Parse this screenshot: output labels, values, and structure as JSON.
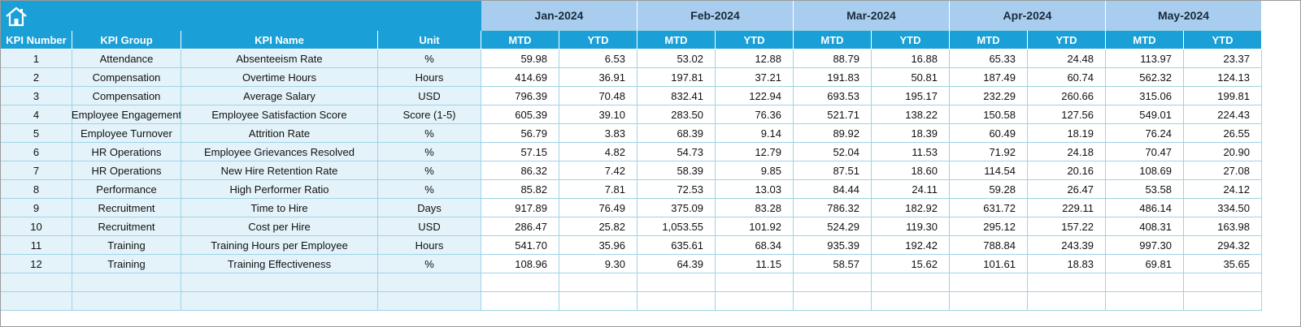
{
  "table": {
    "months": [
      "Jan-2024",
      "Feb-2024",
      "Mar-2024",
      "Apr-2024",
      "May-2024"
    ],
    "columns": [
      "KPI Number",
      "KPI Group",
      "KPI Name",
      "Unit"
    ],
    "period_columns": [
      "MTD",
      "YTD"
    ],
    "rows": [
      [
        "1",
        "Attendance",
        "Absenteeism Rate",
        "%",
        "59.98",
        "6.53",
        "53.02",
        "12.88",
        "88.79",
        "16.88",
        "65.33",
        "24.48",
        "113.97",
        "23.37"
      ],
      [
        "2",
        "Compensation",
        "Overtime Hours",
        "Hours",
        "414.69",
        "36.91",
        "197.81",
        "37.21",
        "191.83",
        "50.81",
        "187.49",
        "60.74",
        "562.32",
        "124.13"
      ],
      [
        "3",
        "Compensation",
        "Average Salary",
        "USD",
        "796.39",
        "70.48",
        "832.41",
        "122.94",
        "693.53",
        "195.17",
        "232.29",
        "260.66",
        "315.06",
        "199.81"
      ],
      [
        "4",
        "Employee Engagement",
        "Employee Satisfaction Score",
        "Score (1-5)",
        "605.39",
        "39.10",
        "283.50",
        "76.36",
        "521.71",
        "138.22",
        "150.58",
        "127.56",
        "549.01",
        "224.43"
      ],
      [
        "5",
        "Employee Turnover",
        "Attrition Rate",
        "%",
        "56.79",
        "3.83",
        "68.39",
        "9.14",
        "89.92",
        "18.39",
        "60.49",
        "18.19",
        "76.24",
        "26.55"
      ],
      [
        "6",
        "HR Operations",
        "Employee Grievances Resolved",
        "%",
        "57.15",
        "4.82",
        "54.73",
        "12.79",
        "52.04",
        "11.53",
        "71.92",
        "24.18",
        "70.47",
        "20.90"
      ],
      [
        "7",
        "HR Operations",
        "New Hire Retention Rate",
        "%",
        "86.32",
        "7.42",
        "58.39",
        "9.85",
        "87.51",
        "18.60",
        "114.54",
        "20.16",
        "108.69",
        "27.08"
      ],
      [
        "8",
        "Performance",
        "High Performer Ratio",
        "%",
        "85.82",
        "7.81",
        "72.53",
        "13.03",
        "84.44",
        "24.11",
        "59.28",
        "26.47",
        "53.58",
        "24.12"
      ],
      [
        "9",
        "Recruitment",
        "Time to Hire",
        "Days",
        "917.89",
        "76.49",
        "375.09",
        "83.28",
        "786.32",
        "182.92",
        "631.72",
        "229.11",
        "486.14",
        "334.50"
      ],
      [
        "10",
        "Recruitment",
        "Cost per Hire",
        "USD",
        "286.47",
        "25.82",
        "1,053.55",
        "101.92",
        "524.29",
        "119.30",
        "295.12",
        "157.22",
        "408.31",
        "163.98"
      ],
      [
        "11",
        "Training",
        "Training Hours per Employee",
        "Hours",
        "541.70",
        "35.96",
        "635.61",
        "68.34",
        "935.39",
        "192.42",
        "788.84",
        "243.39",
        "997.30",
        "294.32"
      ],
      [
        "12",
        "Training",
        "Training Effectiveness",
        "%",
        "108.96",
        "9.30",
        "64.39",
        "11.15",
        "58.57",
        "15.62",
        "101.61",
        "18.83",
        "69.81",
        "35.65"
      ]
    ]
  }
}
